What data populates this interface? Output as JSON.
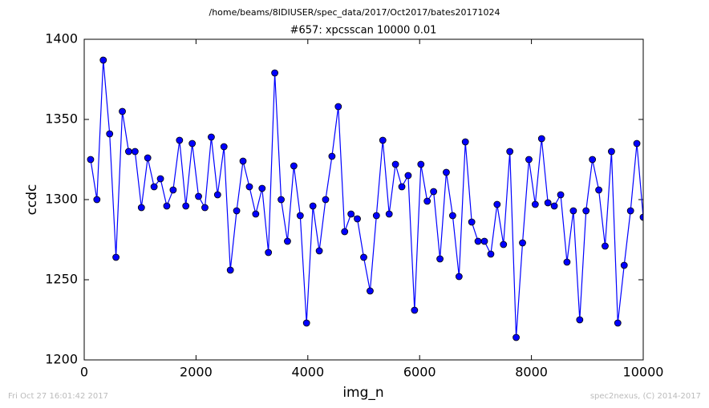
{
  "chart_data": {
    "type": "line",
    "suptitle": "/home/beams/8IDIUSER/spec_data/2017/Oct2017/bates20171024",
    "title": "#657: xpcsscan 10000 0.01",
    "xlabel": "img_n",
    "ylabel": "ccdc",
    "footer_left": "Fri Oct 27 16:01:42 2017",
    "footer_right": "spec2nexus, (C) 2014-2017",
    "xlim": [
      0,
      10000
    ],
    "xticks": [
      0,
      2000,
      4000,
      6000,
      8000,
      10000
    ],
    "ylim": [
      1200,
      1400
    ],
    "yticks": [
      1200,
      1250,
      1300,
      1350,
      1400
    ],
    "grid": false,
    "series": [
      {
        "name": "ccdc",
        "color": "#0000ff",
        "x": [
          114,
          227,
          341,
          455,
          568,
          682,
          795,
          909,
          1023,
          1136,
          1250,
          1364,
          1477,
          1591,
          1705,
          1818,
          1932,
          2045,
          2159,
          2273,
          2386,
          2500,
          2614,
          2727,
          2841,
          2955,
          3068,
          3182,
          3295,
          3409,
          3523,
          3636,
          3750,
          3864,
          3977,
          4091,
          4205,
          4318,
          4432,
          4545,
          4659,
          4773,
          4886,
          5000,
          5114,
          5227,
          5341,
          5455,
          5568,
          5682,
          5795,
          5909,
          6023,
          6136,
          6250,
          6364,
          6477,
          6591,
          6705,
          6818,
          6932,
          7045,
          7159,
          7273,
          7386,
          7500,
          7614,
          7727,
          7841,
          7955,
          8068,
          8182,
          8295,
          8409,
          8523,
          8636,
          8750,
          8864,
          8977,
          9091,
          9205,
          9318,
          9432,
          9545,
          9659,
          9773,
          9886,
          10000
        ],
        "values": [
          1325,
          1300,
          1387,
          1341,
          1264,
          1355,
          1330,
          1330,
          1295,
          1326,
          1308,
          1313,
          1296,
          1306,
          1337,
          1296,
          1335,
          1302,
          1295,
          1339,
          1303,
          1333,
          1256,
          1293,
          1324,
          1308,
          1291,
          1307,
          1267,
          1379,
          1300,
          1274,
          1321,
          1290,
          1223,
          1296,
          1268,
          1300,
          1327,
          1358,
          1280,
          1291,
          1288,
          1264,
          1243,
          1290,
          1337,
          1291,
          1322,
          1308,
          1315,
          1231,
          1322,
          1299,
          1305,
          1263,
          1317,
          1290,
          1252,
          1336,
          1286,
          1274,
          1274,
          1266,
          1297,
          1272,
          1330,
          1214,
          1273,
          1325,
          1297,
          1338,
          1298,
          1296,
          1303,
          1261,
          1293,
          1225,
          1293,
          1325,
          1306,
          1271,
          1330,
          1223,
          1259,
          1293,
          1335,
          1289
        ]
      }
    ]
  }
}
